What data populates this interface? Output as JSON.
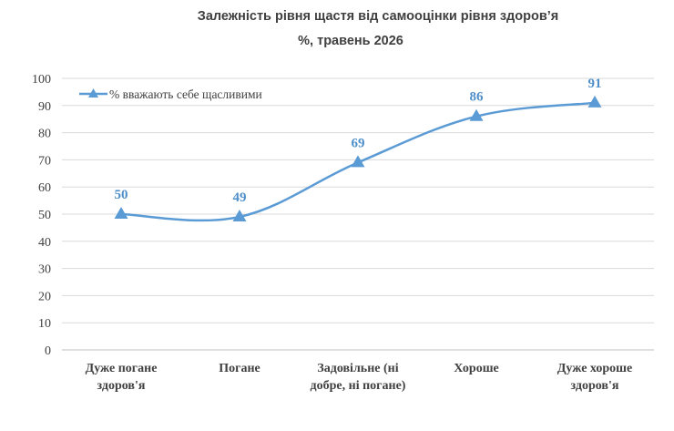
{
  "chart_data": {
    "type": "line",
    "title": "Залежність рівня щастя від самооцінки рівня здоров’я",
    "subtitle": "%, травень 2026",
    "categories": [
      [
        "Дуже погане",
        "здоров'я"
      ],
      [
        "Погане"
      ],
      [
        "Задовільне (ні",
        "добре, ні погане)"
      ],
      [
        "Хороше"
      ],
      [
        "Дуже хороше",
        "здоров'я"
      ]
    ],
    "series": [
      {
        "name": "% вважають себе щасливими",
        "values": [
          50,
          49,
          69,
          86,
          91
        ]
      }
    ],
    "ylim": [
      0,
      100
    ],
    "yticks": [
      0,
      10,
      20,
      30,
      40,
      50,
      60,
      70,
      80,
      90,
      100
    ],
    "grid": true,
    "legend_position": "top-left",
    "colors": {
      "series": "#5b9bd5",
      "label": "#4f8fc9",
      "grid": "#d9d9d9"
    }
  }
}
